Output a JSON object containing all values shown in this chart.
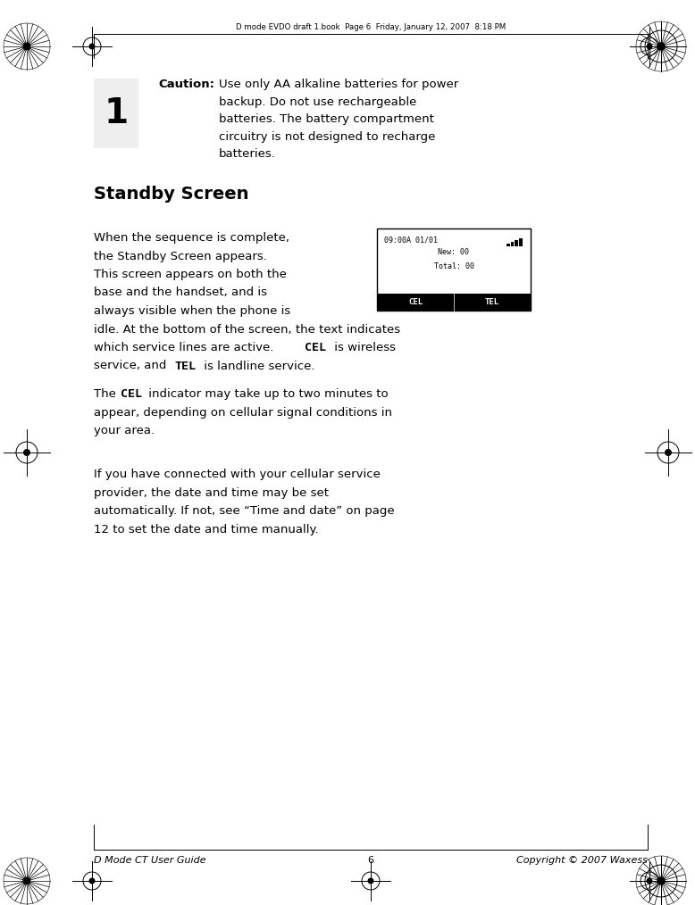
{
  "page_width": 7.78,
  "page_height": 10.14,
  "dpi": 100,
  "bg_color": "#ffffff",
  "header_text": "D mode EVDO draft 1.book  Page 6  Friday, January 12, 2007  8:18 PM",
  "footer_left": "D Mode CT User Guide",
  "footer_center": "6",
  "footer_right": "Copyright © 2007 Waxess",
  "caution_number": "1",
  "caution_label": "Caution:",
  "caution_text_line1": "Use only AA alkaline batteries for power",
  "caution_text_line2": "backup. Do not use rechargeable",
  "caution_text_line3": "batteries. The battery compartment",
  "caution_text_line4": "circuitry is not designed to recharge",
  "caution_text_line5": "batteries.",
  "section_title": "Standby Screen",
  "screen_line1": "09:00A 01/01",
  "screen_line2": "New: 00",
  "screen_line3": "Total: 00",
  "screen_cel": "CEL",
  "screen_tel": "TEL",
  "para2_line1a": "The ",
  "para2_cel": "CEL",
  "para2_line1b": " indicator may take up to two minutes to",
  "para2_line2": "appear, depending on cellular signal conditions in",
  "para2_line3": "your area.",
  "para3_line1": "If you have connected with your cellular service",
  "para3_line2": "provider, the date and time may be set",
  "para3_line3": "automatically. If not, see “Time and date” on page",
  "para3_line4": "12 to set the date and time manually.",
  "ml": 1.05,
  "mr": 7.25,
  "text_color": "#000000",
  "gray_box_color": "#eeeeee"
}
